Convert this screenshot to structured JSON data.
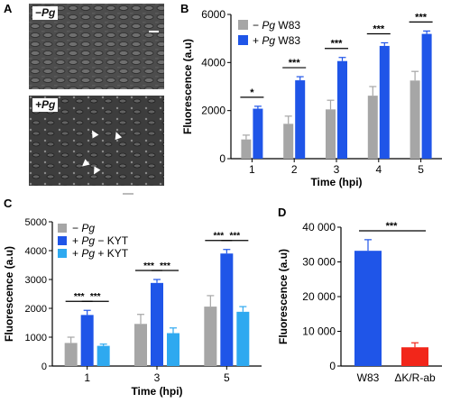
{
  "panels": {
    "A": {
      "letter": "A",
      "top_label": "−Pg",
      "bottom_label": "+Pg"
    },
    "B": {
      "letter": "B"
    },
    "C": {
      "letter": "C"
    },
    "D": {
      "letter": "D"
    }
  },
  "chart_data": [
    {
      "id": "B",
      "type": "bar",
      "xlabel": "Time (hpi)",
      "ylabel": "Fluorescence (a.u)",
      "categories": [
        "1",
        "2",
        "3",
        "4",
        "5"
      ],
      "ylim": [
        0,
        6000
      ],
      "yticks": [
        "0",
        "2000",
        "4000",
        "6000"
      ],
      "legend_position": "top-left",
      "series": [
        {
          "name": "− Pg W83",
          "color": "#a6a6a6",
          "values": [
            800,
            1450,
            2050,
            2620,
            3250
          ],
          "errors": [
            180,
            320,
            380,
            380,
            380
          ]
        },
        {
          "name": "+ Pg W83",
          "color": "#1f55e8",
          "values": [
            2080,
            3260,
            4060,
            4690,
            5190
          ],
          "errors": [
            100,
            150,
            150,
            130,
            120
          ]
        }
      ],
      "significance": [
        "*",
        "***",
        "***",
        "***",
        "***"
      ]
    },
    {
      "id": "C",
      "type": "bar",
      "xlabel": "Time (hpi)",
      "ylabel": "Fluorescence (a.u)",
      "categories": [
        "1",
        "3",
        "5"
      ],
      "ylim": [
        0,
        5000
      ],
      "yticks": [
        "0",
        "1000",
        "2000",
        "3000",
        "4000",
        "5000"
      ],
      "legend_position": "top-left",
      "series": [
        {
          "name": "− Pg",
          "color": "#a6a6a6",
          "values": [
            800,
            1460,
            2060
          ],
          "errors": [
            200,
            330,
            380
          ]
        },
        {
          "name": "+ Pg − KYT",
          "color": "#1f55e8",
          "values": [
            1770,
            2880,
            3900
          ],
          "errors": [
            160,
            120,
            140
          ]
        },
        {
          "name": "+ Pg + KYT",
          "color": "#2ea9f0",
          "values": [
            700,
            1140,
            1880
          ],
          "errors": [
            60,
            180,
            180
          ]
        }
      ],
      "significance_pairs": [
        "***",
        "***",
        "***",
        "***",
        "***",
        "***"
      ]
    },
    {
      "id": "D",
      "type": "bar",
      "xlabel": "",
      "ylabel": "Fluorescence (a.u)",
      "categories": [
        "W83",
        "ΔK/R-ab"
      ],
      "ylim": [
        0,
        40000
      ],
      "yticks": [
        "0",
        "10 000",
        "20 000",
        "30 000",
        "40 000"
      ],
      "values": [
        33200,
        5400
      ],
      "errors": [
        3200,
        1300
      ],
      "colors": [
        "#1f55e8",
        "#f2261a"
      ],
      "significance": "***"
    }
  ]
}
